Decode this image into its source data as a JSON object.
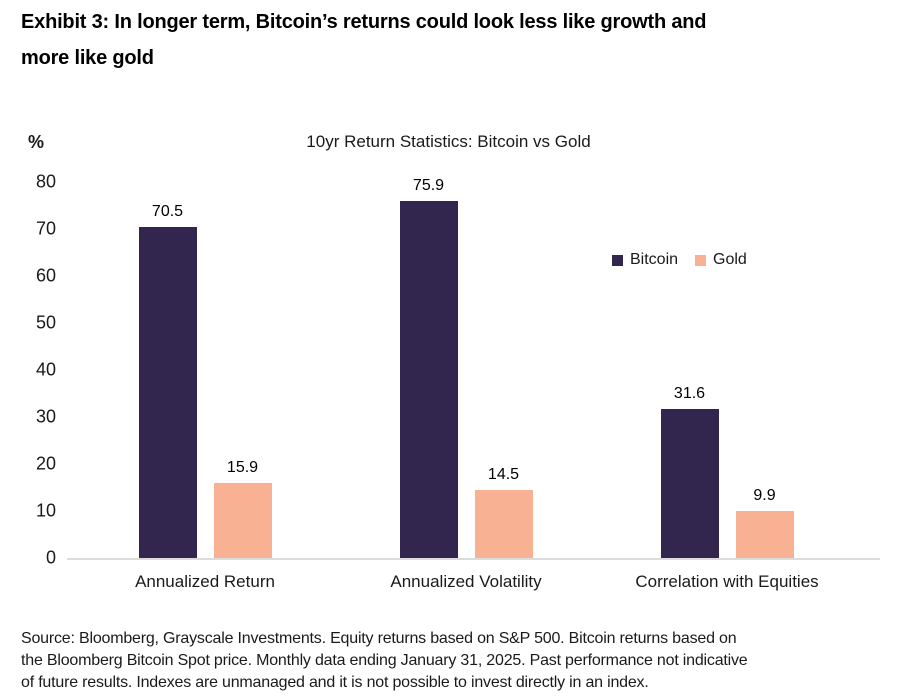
{
  "exhibit_title": {
    "line1": "Exhibit 3: In longer term, Bitcoin’s returns could look less like growth and",
    "line2": "more like gold"
  },
  "chart_data": {
    "type": "bar",
    "title": "10yr Return Statistics: Bitcoin vs Gold",
    "unit_label": "%",
    "categories": [
      "Annualized Return",
      "Annualized Volatility",
      "Correlation with Equities"
    ],
    "series": [
      {
        "name": "Bitcoin",
        "color": "#32254E",
        "values": [
          70.5,
          75.9,
          31.6
        ]
      },
      {
        "name": "Gold",
        "color": "#F8B192",
        "values": [
          15.9,
          14.5,
          9.9
        ]
      }
    ],
    "ylim": [
      0,
      80
    ],
    "yticks": [
      0,
      10,
      20,
      30,
      40,
      50,
      60,
      70,
      80
    ],
    "grid": false,
    "legend_position": "upper-right",
    "value_labels": true,
    "axis_line_color": "#DCDCDC"
  },
  "source": {
    "lines": [
      "Source: Bloomberg, Grayscale Investments. Equity returns based on S&P 500. Bitcoin returns based on",
      "the Bloomberg Bitcoin Spot price. Monthly data ending January 31, 2025. Past performance not indicative",
      "of future results. Indexes are unmanaged and it is not possible to invest directly in an index."
    ]
  }
}
